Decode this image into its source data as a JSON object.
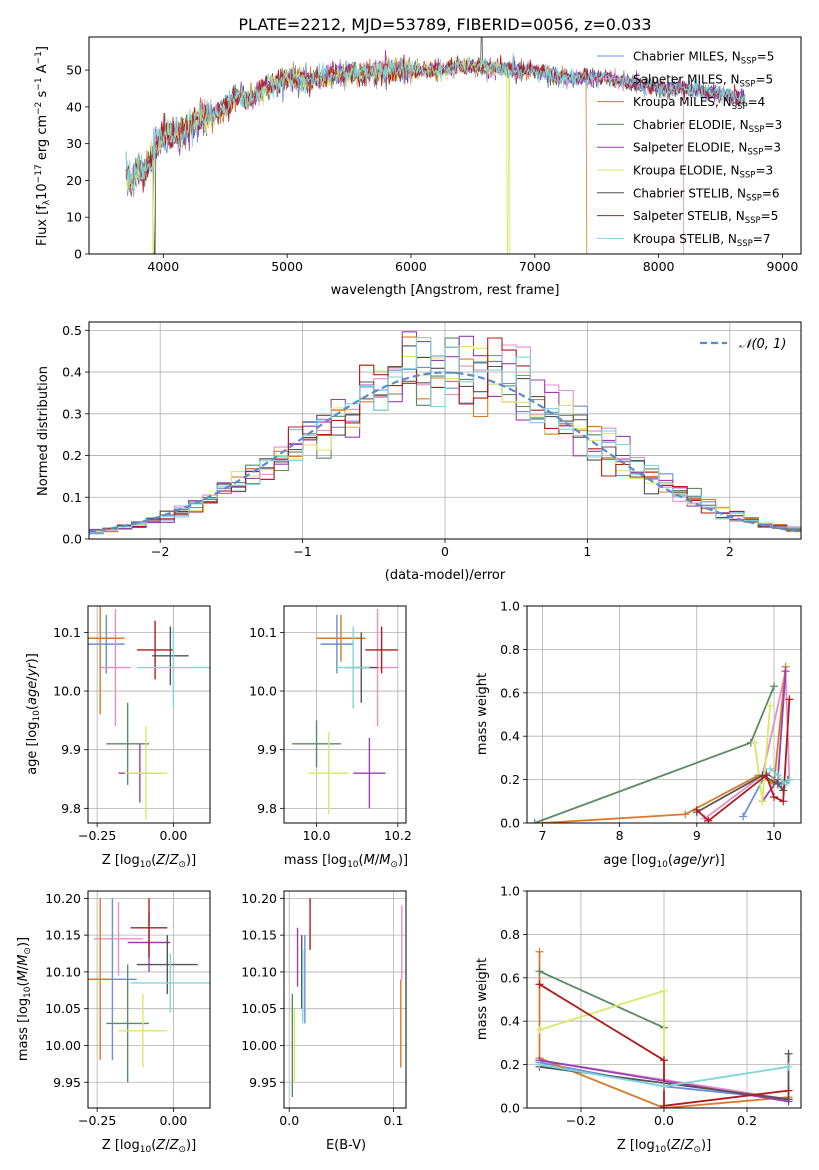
{
  "figure": {
    "title": "PLATE=2212, MJD=53789, FIBERID=0056, z=0.033"
  },
  "series_styles": [
    {
      "name": "Chabrier MILES, N_SSP=5",
      "label_main": "Chabrier MILES, N",
      "label_sub": "SSP",
      "label_tail": "=5",
      "color": "#6a8fd8"
    },
    {
      "name": "Salpeter MILES, N_SSP=5",
      "label_main": "Salpeter MILES, N",
      "label_sub": "SSP",
      "label_tail": "=5",
      "color": "#e58fc8"
    },
    {
      "name": "Kroupa MILES, N_SSP=4",
      "label_main": "Kroupa MILES, N",
      "label_sub": "SSP",
      "label_tail": "=4",
      "color": "#d97a2b"
    },
    {
      "name": "Chabrier ELODIE, N_SSP=3",
      "label_main": "Chabrier ELODIE, N",
      "label_sub": "SSP",
      "label_tail": "=3",
      "color": "#5b8a63"
    },
    {
      "name": "Salpeter ELODIE, N_SSP=3",
      "label_main": "Salpeter ELODIE, N",
      "label_sub": "SSP",
      "label_tail": "=3",
      "color": "#9b3fb5"
    },
    {
      "name": "Kroupa ELODIE, N_SSP=3",
      "label_main": "Kroupa ELODIE, N",
      "label_sub": "SSP",
      "label_tail": "=3",
      "color": "#d9e86a"
    },
    {
      "name": "Chabrier STELIB, N_SSP=6",
      "label_main": "Chabrier STELIB, N",
      "label_sub": "SSP",
      "label_tail": "=6",
      "color": "#555555"
    },
    {
      "name": "Salpeter STELIB, N_SSP=5",
      "label_main": "Salpeter STELIB, N",
      "label_sub": "SSP",
      "label_tail": "=5",
      "color": "#b01c1c"
    },
    {
      "name": "Kroupa STELIB, N_SSP=7",
      "label_main": "Kroupa STELIB, N",
      "label_sub": "SSP",
      "label_tail": "=7",
      "color": "#7fd6dc"
    }
  ],
  "chart_data": [
    {
      "id": "spectrum",
      "type": "line",
      "xlabel": "wavelength [Angstrom, rest frame]",
      "ylabel": "Flux [f_λ 10^-17 erg cm^-2 s^-1 A^-1]",
      "ylabel_main": "Flux [f",
      "ylabel_parts": [
        "λ",
        "10",
        "−17",
        " erg cm",
        "−2",
        " s",
        "−1",
        " A",
        "−1",
        "]"
      ],
      "xlim": [
        3400,
        9150
      ],
      "ylim": [
        0,
        59
      ],
      "xticks": [
        4000,
        5000,
        6000,
        7000,
        8000,
        9000
      ],
      "yticks": [
        0,
        10,
        20,
        30,
        40,
        50
      ],
      "anchors_x": [
        3700,
        3750,
        3800,
        3850,
        3900,
        3950,
        4000,
        4100,
        4200,
        4300,
        4400,
        4500,
        4600,
        4700,
        4800,
        4900,
        5000,
        5200,
        5400,
        5600,
        5800,
        6000,
        6200,
        6400,
        6600,
        6800,
        7000,
        7200,
        7400,
        7600,
        7800,
        8000,
        8200,
        8400,
        8600,
        8700
      ],
      "anchors_y": [
        22,
        19,
        24,
        21,
        26,
        30,
        33,
        32,
        34,
        37,
        38,
        40,
        43,
        42,
        45,
        46,
        48,
        47,
        49,
        49,
        50,
        50,
        50,
        51,
        51,
        50,
        50,
        48,
        48,
        48,
        46,
        45,
        45,
        44,
        43,
        42
      ],
      "truncations": [
        {
          "series": 5,
          "x_end": 6800
        },
        {
          "series": 2,
          "x_end": 7420
        },
        {
          "series": 1,
          "x_end": 8200
        },
        {
          "series": 3,
          "x_end": 8700
        }
      ],
      "dips": [
        {
          "series": 5,
          "x": 3920
        },
        {
          "series": 6,
          "x": 3930
        },
        {
          "series": 5,
          "x": 6780
        },
        {
          "series": 2,
          "x": 7420
        }
      ]
    },
    {
      "id": "residual-histogram",
      "type": "bar",
      "xlabel": "(data-model)/error",
      "ylabel": "Normed distribution",
      "xlim": [
        -2.5,
        2.5
      ],
      "ylim": [
        0,
        0.52
      ],
      "xticks": [
        -2,
        -1,
        0,
        1,
        2
      ],
      "yticks": [
        0.0,
        0.1,
        0.2,
        0.3,
        0.4,
        0.5
      ],
      "bin_width": 0.1,
      "legend": {
        "label": "𝒩(0, 1)",
        "placement": "top-right",
        "style": "dashed",
        "color": "#5b8ad0"
      }
    },
    {
      "id": "age-vs-Z",
      "type": "scatter",
      "xlabel": "Z [log10(Z/Z⊙)]",
      "ylabel": "age  [log10(age/yr)]",
      "xlim": [
        -0.28,
        0.12
      ],
      "ylim": [
        9.775,
        10.145
      ],
      "xticks": [
        -0.25,
        0.0
      ],
      "xticklabels": [
        "−0.25",
        "0.00"
      ],
      "yticks": [
        9.8,
        9.9,
        10.0,
        10.1
      ],
      "points": [
        {
          "x": -0.22,
          "y": 10.08,
          "xerr": 0.06,
          "yerr": 0.05
        },
        {
          "x": -0.19,
          "y": 10.04,
          "xerr": 0.05,
          "yerr": 0.1
        },
        {
          "x": -0.24,
          "y": 10.09,
          "xerr": 0.08,
          "yerr": 0.13
        },
        {
          "x": -0.15,
          "y": 9.91,
          "xerr": 0.07,
          "yerr": 0.07
        },
        {
          "x": -0.11,
          "y": 9.86,
          "xerr": 0.07,
          "yerr": 0.05
        },
        {
          "x": -0.09,
          "y": 9.86,
          "xerr": 0.07,
          "yerr": 0.08
        },
        {
          "x": -0.01,
          "y": 10.06,
          "xerr": 0.06,
          "yerr": 0.05
        },
        {
          "x": -0.06,
          "y": 10.07,
          "xerr": 0.06,
          "yerr": 0.05
        },
        {
          "x": 0.0,
          "y": 10.04,
          "xerr": 0.12,
          "yerr": 0.07
        }
      ]
    },
    {
      "id": "age-vs-mass",
      "type": "scatter",
      "xlabel": "mass [log10(M/M⊙)]",
      "ylabel": "",
      "xlim": [
        9.92,
        10.22
      ],
      "ylim": [
        9.775,
        10.145
      ],
      "xticks": [
        10.0,
        10.2
      ],
      "xticklabels": [
        "10.0",
        "10.2"
      ],
      "yticks": [
        9.8,
        9.9,
        10.0,
        10.1
      ],
      "points": [
        {
          "x": 10.05,
          "y": 10.08,
          "xerr": 0.04,
          "yerr": 0.05
        },
        {
          "x": 10.15,
          "y": 10.04,
          "xerr": 0.05,
          "yerr": 0.1
        },
        {
          "x": 10.06,
          "y": 10.09,
          "xerr": 0.06,
          "yerr": 0.04
        },
        {
          "x": 10.0,
          "y": 9.91,
          "xerr": 0.06,
          "yerr": 0.04
        },
        {
          "x": 10.13,
          "y": 9.86,
          "xerr": 0.04,
          "yerr": 0.06
        },
        {
          "x": 10.03,
          "y": 9.86,
          "xerr": 0.05,
          "yerr": 0.07
        },
        {
          "x": 10.11,
          "y": 10.04,
          "xerr": 0.04,
          "yerr": 0.06
        },
        {
          "x": 10.16,
          "y": 10.07,
          "xerr": 0.04,
          "yerr": 0.04
        },
        {
          "x": 10.09,
          "y": 10.04,
          "xerr": 0.04,
          "yerr": 0.07
        }
      ]
    },
    {
      "id": "massweight-vs-age",
      "type": "line",
      "xlabel": "age  [log10(age/yr)]",
      "ylabel": "mass weight",
      "xlim": [
        6.8,
        10.35
      ],
      "ylim": [
        0,
        1.0
      ],
      "xticks": [
        7,
        8,
        9,
        10
      ],
      "yticks": [
        0.0,
        0.2,
        0.4,
        0.6,
        0.8,
        1.0
      ],
      "series": [
        {
          "x": [
            9.6,
            9.9,
            10.1,
            10.2
          ],
          "y": [
            0.03,
            0.23,
            0.18,
            0.2
          ]
        },
        {
          "x": [
            9.1,
            9.85,
            10.15,
            10.2
          ],
          "y": [
            0.02,
            0.22,
            0.7,
            0.2
          ]
        },
        {
          "x": [
            7.0,
            8.85,
            9.8,
            10.0,
            10.15
          ],
          "y": [
            0.0,
            0.04,
            0.22,
            0.18,
            0.72
          ]
        },
        {
          "x": [
            6.9,
            9.7,
            10.0
          ],
          "y": [
            0.0,
            0.37,
            0.63
          ]
        },
        {
          "x": [
            9.85,
            10.05,
            10.15
          ],
          "y": [
            0.1,
            0.2,
            0.7
          ]
        },
        {
          "x": [
            9.75,
            9.85,
            9.95
          ],
          "y": [
            0.37,
            0.1,
            0.54
          ]
        },
        {
          "x": [
            9.0,
            9.85,
            10.05,
            10.12,
            10.18
          ],
          "y": [
            0.05,
            0.22,
            0.18,
            0.15,
            0.2
          ]
        },
        {
          "x": [
            9.0,
            9.15,
            9.9,
            10.0,
            10.12,
            10.2
          ],
          "y": [
            0.06,
            0.01,
            0.22,
            0.12,
            0.1,
            0.57
          ]
        },
        {
          "x": [
            9.95,
            10.05,
            10.15,
            10.2
          ],
          "y": [
            0.25,
            0.22,
            0.18,
            0.2
          ]
        }
      ]
    },
    {
      "id": "mass-vs-Z",
      "type": "scatter",
      "xlabel": "Z [log10(Z/Z⊙)]",
      "ylabel": "mass [log10(M/M⊙)]",
      "xlim": [
        -0.28,
        0.12
      ],
      "ylim": [
        9.915,
        10.21
      ],
      "xticks": [
        -0.25,
        0.0
      ],
      "xticklabels": [
        "−0.25",
        "0.00"
      ],
      "yticks": [
        9.95,
        10.0,
        10.05,
        10.1,
        10.15,
        10.2
      ],
      "points": [
        {
          "x": -0.2,
          "y": 10.09,
          "xerr": 0.08,
          "yerr": 0.11
        },
        {
          "x": -0.18,
          "y": 10.145,
          "xerr": 0.08,
          "yerr": 0.05
        },
        {
          "x": -0.24,
          "y": 10.09,
          "xerr": 0.04,
          "yerr": 0.11
        },
        {
          "x": -0.15,
          "y": 10.03,
          "xerr": 0.07,
          "yerr": 0.08
        },
        {
          "x": -0.08,
          "y": 10.14,
          "xerr": 0.07,
          "yerr": 0.04
        },
        {
          "x": -0.1,
          "y": 10.02,
          "xerr": 0.08,
          "yerr": 0.05
        },
        {
          "x": -0.02,
          "y": 10.11,
          "xerr": 0.1,
          "yerr": 0.04
        },
        {
          "x": -0.08,
          "y": 10.16,
          "xerr": 0.06,
          "yerr": 0.04
        },
        {
          "x": -0.01,
          "y": 10.085,
          "xerr": 0.13,
          "yerr": 0.04
        }
      ]
    },
    {
      "id": "mass-vs-ebv",
      "type": "scatter",
      "xlabel": "E(B-V)",
      "ylabel": "",
      "xlim": [
        -0.005,
        0.112
      ],
      "ylim": [
        9.915,
        10.21
      ],
      "xticks": [
        0.0,
        0.1
      ],
      "xticklabels": [
        "0.0",
        "0.1"
      ],
      "yticks": [
        9.95,
        10.0,
        10.05,
        10.1,
        10.15,
        10.2
      ],
      "points": [
        {
          "x": 0.015,
          "y": 10.09,
          "xerr": 0.0,
          "yerr": 0.06
        },
        {
          "x": 0.108,
          "y": 10.14,
          "xerr": 0.0,
          "yerr": 0.05
        },
        {
          "x": 0.107,
          "y": 10.03,
          "xerr": 0.0,
          "yerr": 0.06
        },
        {
          "x": 0.003,
          "y": 10.0,
          "xerr": 0.0,
          "yerr": 0.07
        },
        {
          "x": 0.008,
          "y": 10.12,
          "xerr": 0.0,
          "yerr": 0.04
        },
        {
          "x": 0.005,
          "y": 10.0,
          "xerr": 0.0,
          "yerr": 0.05
        },
        {
          "x": 0.012,
          "y": 10.1,
          "xerr": 0.0,
          "yerr": 0.05
        },
        {
          "x": 0.02,
          "y": 10.165,
          "xerr": 0.0,
          "yerr": 0.035
        },
        {
          "x": 0.013,
          "y": 10.08,
          "xerr": 0.0,
          "yerr": 0.05
        }
      ]
    },
    {
      "id": "massweight-vs-Z",
      "type": "line",
      "xlabel": "Z [log10(Z/Z⊙)]",
      "ylabel": "mass weight",
      "xlim": [
        -0.33,
        0.33
      ],
      "ylim": [
        0,
        1.0
      ],
      "xticks": [
        -0.2,
        0.0,
        0.2
      ],
      "xticklabels": [
        "−0.2",
        "0.0",
        "0.2"
      ],
      "yticks": [
        0.0,
        0.2,
        0.4,
        0.6,
        0.8,
        1.0
      ],
      "series": [
        {
          "x": [
            -0.3,
            0.0,
            0.3
          ],
          "y": [
            0.21,
            0.1,
            0.04
          ]
        },
        {
          "x": [
            -0.3,
            0.0,
            0.3
          ],
          "y": [
            0.22,
            0.13,
            0.04
          ]
        },
        {
          "x": [
            -0.3,
            -0.3,
            0.0,
            0.3
          ],
          "y": [
            0.72,
            0.23,
            0.0,
            0.05
          ]
        },
        {
          "x": [
            -0.3,
            0.0
          ],
          "y": [
            0.63,
            0.37
          ]
        },
        {
          "x": [
            -0.3,
            0.3
          ],
          "y": [
            0.22,
            0.03
          ]
        },
        {
          "x": [
            -0.3,
            0.0,
            0.0
          ],
          "y": [
            0.36,
            0.54,
            0.1
          ]
        },
        {
          "x": [
            -0.3,
            0.3,
            0.3
          ],
          "y": [
            0.19,
            0.04,
            0.25
          ]
        },
        {
          "x": [
            -0.3,
            0.0,
            0.0,
            0.3
          ],
          "y": [
            0.57,
            0.22,
            0.01,
            0.08
          ]
        },
        {
          "x": [
            -0.3,
            0.0,
            0.3
          ],
          "y": [
            0.2,
            0.1,
            0.19
          ]
        }
      ]
    }
  ]
}
